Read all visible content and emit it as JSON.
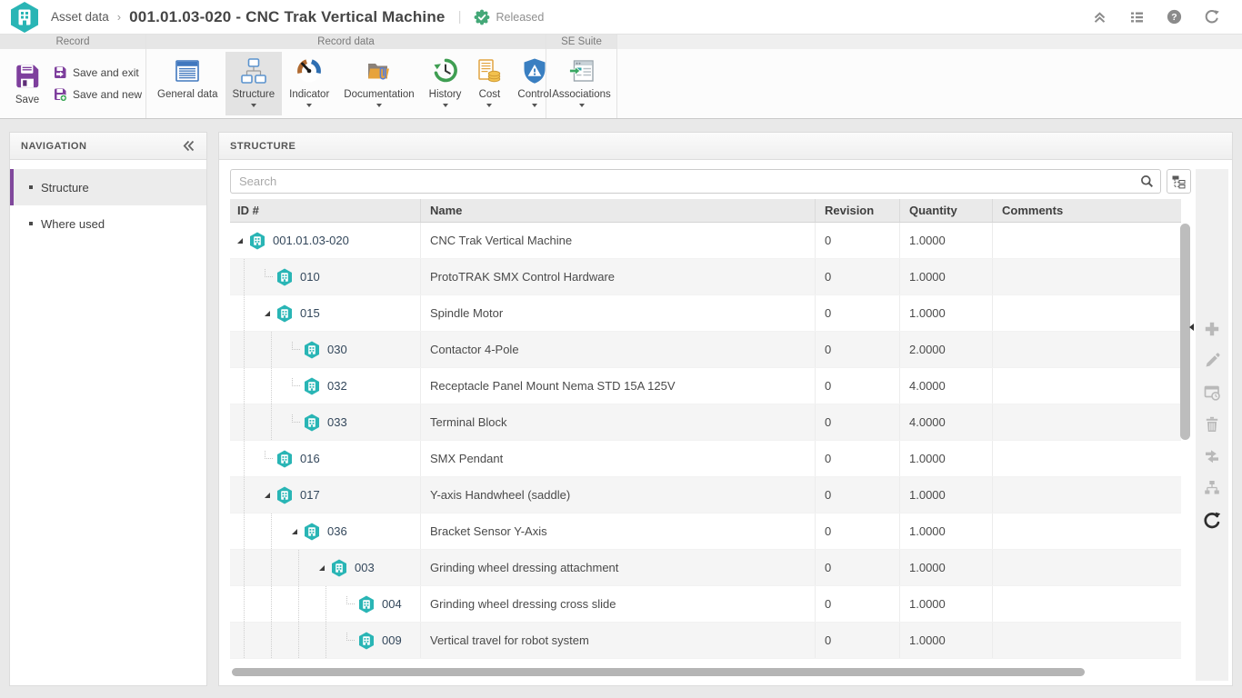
{
  "topbar": {
    "breadcrumb": "Asset data",
    "title": "001.01.03-020 - CNC Trak Vertical Machine",
    "status": "Released"
  },
  "ribbon": {
    "groups": [
      "Record",
      "Record data",
      "SE Suite"
    ],
    "save": "Save",
    "save_and_exit": "Save and exit",
    "save_and_new": "Save and new",
    "tabs": {
      "general_data": "General data",
      "structure": "Structure",
      "indicator": "Indicator",
      "documentation": "Documentation",
      "history": "History",
      "cost": "Cost",
      "control": "Control",
      "associations": "Associations"
    }
  },
  "nav": {
    "title": "NAVIGATION",
    "items": [
      {
        "label": "Structure",
        "active": true
      },
      {
        "label": "Where used",
        "active": false
      }
    ]
  },
  "panel": {
    "title": "STRUCTURE",
    "search_placeholder": "Search"
  },
  "grid": {
    "columns": [
      "ID #",
      "Name",
      "Revision",
      "Quantity",
      "Comments"
    ],
    "rows": [
      {
        "level": 0,
        "expanded": true,
        "id": "001.01.03-020",
        "name": "CNC Trak Vertical Machine",
        "revision": "0",
        "quantity": "1.0000",
        "comments": ""
      },
      {
        "level": 1,
        "expanded": false,
        "id": "010",
        "name": "ProtoTRAK SMX Control Hardware",
        "revision": "0",
        "quantity": "1.0000",
        "comments": ""
      },
      {
        "level": 1,
        "expanded": true,
        "id": "015",
        "name": "Spindle Motor",
        "revision": "0",
        "quantity": "1.0000",
        "comments": ""
      },
      {
        "level": 2,
        "expanded": false,
        "id": "030",
        "name": "Contactor 4-Pole",
        "revision": "0",
        "quantity": "2.0000",
        "comments": ""
      },
      {
        "level": 2,
        "expanded": false,
        "id": "032",
        "name": "Receptacle Panel Mount Nema STD 15A 125V",
        "revision": "0",
        "quantity": "4.0000",
        "comments": ""
      },
      {
        "level": 2,
        "expanded": false,
        "id": "033",
        "name": "Terminal Block",
        "revision": "0",
        "quantity": "4.0000",
        "comments": ""
      },
      {
        "level": 1,
        "expanded": false,
        "id": "016",
        "name": "SMX Pendant",
        "revision": "0",
        "quantity": "1.0000",
        "comments": ""
      },
      {
        "level": 1,
        "expanded": true,
        "id": "017",
        "name": "Y-axis Handwheel (saddle)",
        "revision": "0",
        "quantity": "1.0000",
        "comments": ""
      },
      {
        "level": 2,
        "expanded": true,
        "id": "036",
        "name": "Bracket Sensor Y-Axis",
        "revision": "0",
        "quantity": "1.0000",
        "comments": ""
      },
      {
        "level": 3,
        "expanded": true,
        "id": "003",
        "name": "Grinding wheel dressing attachment",
        "revision": "0",
        "quantity": "1.0000",
        "comments": ""
      },
      {
        "level": 4,
        "expanded": false,
        "id": "004",
        "name": "Grinding wheel dressing cross slide",
        "revision": "0",
        "quantity": "1.0000",
        "comments": ""
      },
      {
        "level": 4,
        "expanded": false,
        "id": "009",
        "name": "Vertical travel for robot system",
        "revision": "0",
        "quantity": "1.0000",
        "comments": ""
      }
    ]
  },
  "colors": {
    "teal": "#29b5b5",
    "purple": "#7e3f9d",
    "released_green": "#44a878",
    "accent_purple_bar": "#80489c"
  },
  "icons": {
    "topbar_right": [
      "collapse-up-icon",
      "list-icon",
      "help-icon",
      "refresh-icon"
    ],
    "side_toolbar": [
      "add-icon",
      "edit-icon",
      "view-icon",
      "delete-icon",
      "move-icon",
      "structure-tree-icon",
      "refresh-icon"
    ]
  }
}
